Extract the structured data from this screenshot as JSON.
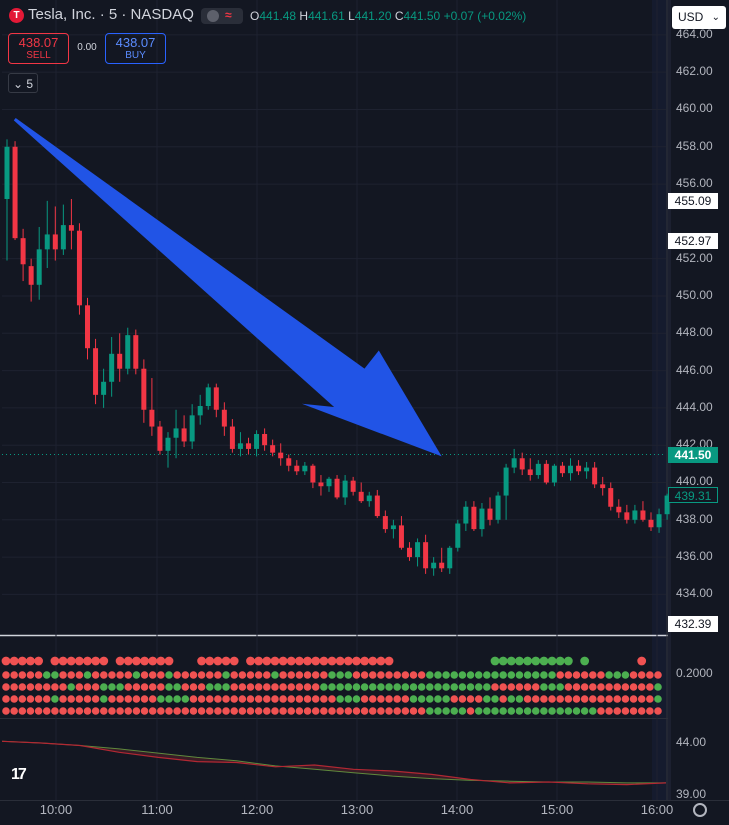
{
  "header": {
    "symbol_title": "Tesla, Inc. · 5 · NASDAQ",
    "logo_letter": "T",
    "ohlc": {
      "o_label": "O",
      "o": "441.48",
      "h_label": "H",
      "h": "441.61",
      "l_label": "L",
      "l": "441.20",
      "c_label": "C",
      "c": "441.50",
      "change": "+0.07 (+0.02%)"
    }
  },
  "trade": {
    "sell_price": "438.07",
    "sell_label": "SELL",
    "spread": "0.00",
    "buy_price": "438.07",
    "buy_label": "BUY"
  },
  "collapse_label": "5",
  "currency": "USD",
  "price_axis": {
    "ticks": [
      "464.00",
      "462.00",
      "460.00",
      "458.00",
      "456.00",
      "452.00",
      "450.00",
      "448.00",
      "446.00",
      "444.00",
      "442.00",
      "440.00",
      "438.00",
      "436.00",
      "434.00"
    ],
    "labels": [
      {
        "text": "455.09",
        "value": 455.09,
        "style": "white"
      },
      {
        "text": "452.97",
        "value": 452.97,
        "style": "white"
      },
      {
        "text": "441.50",
        "value": 441.5,
        "style": "green"
      },
      {
        "text": "439.31",
        "value": 439.31,
        "style": "outline"
      },
      {
        "text": "432.39",
        "value": 432.39,
        "style": "white"
      }
    ]
  },
  "indicator1": {
    "tick": "0.2000"
  },
  "indicator2": {
    "tick1": "44.00",
    "tick2": "39.00"
  },
  "time_axis": [
    "10:00",
    "11:00",
    "12:00",
    "13:00",
    "14:00",
    "15:00",
    "16:00"
  ],
  "colors": {
    "up": "#089981",
    "down": "#f23645",
    "arrow": "#2154e6",
    "bg": "#131722"
  },
  "chart_data": {
    "type": "candlestick",
    "title": "",
    "interval": "5",
    "ylim": [
      433.5,
      464.5
    ],
    "arrow": {
      "from": {
        "candle": 1,
        "price": 459.5
      },
      "to": {
        "candle": 54,
        "price": 441.4
      }
    },
    "last_price": 441.5,
    "candles": [
      {
        "o": 455.2,
        "h": 458.4,
        "l": 451.9,
        "c": 458.0
      },
      {
        "o": 458.0,
        "h": 458.3,
        "l": 453.0,
        "c": 453.1
      },
      {
        "o": 453.1,
        "h": 453.6,
        "l": 450.8,
        "c": 451.7
      },
      {
        "o": 451.6,
        "h": 452.0,
        "l": 449.7,
        "c": 450.6
      },
      {
        "o": 450.6,
        "h": 453.7,
        "l": 449.8,
        "c": 452.5
      },
      {
        "o": 452.5,
        "h": 455.1,
        "l": 451.5,
        "c": 453.3
      },
      {
        "o": 453.3,
        "h": 454.8,
        "l": 451.9,
        "c": 452.5
      },
      {
        "o": 452.5,
        "h": 454.9,
        "l": 452.2,
        "c": 453.8
      },
      {
        "o": 453.8,
        "h": 455.2,
        "l": 452.5,
        "c": 453.5
      },
      {
        "o": 453.5,
        "h": 453.9,
        "l": 449.0,
        "c": 449.5
      },
      {
        "o": 449.5,
        "h": 449.9,
        "l": 446.6,
        "c": 447.2
      },
      {
        "o": 447.2,
        "h": 447.7,
        "l": 444.2,
        "c": 444.7
      },
      {
        "o": 444.7,
        "h": 446.1,
        "l": 444.0,
        "c": 445.4
      },
      {
        "o": 445.4,
        "h": 447.8,
        "l": 444.6,
        "c": 446.9
      },
      {
        "o": 446.9,
        "h": 448.0,
        "l": 445.4,
        "c": 446.1
      },
      {
        "o": 446.1,
        "h": 448.3,
        "l": 445.8,
        "c": 447.9
      },
      {
        "o": 447.9,
        "h": 448.2,
        "l": 445.8,
        "c": 446.1
      },
      {
        "o": 446.1,
        "h": 446.6,
        "l": 443.2,
        "c": 443.9
      },
      {
        "o": 443.9,
        "h": 445.6,
        "l": 442.5,
        "c": 443.0
      },
      {
        "o": 443.0,
        "h": 443.3,
        "l": 441.5,
        "c": 441.7
      },
      {
        "o": 441.7,
        "h": 442.7,
        "l": 440.8,
        "c": 442.4
      },
      {
        "o": 442.4,
        "h": 443.9,
        "l": 441.3,
        "c": 442.9
      },
      {
        "o": 442.9,
        "h": 443.6,
        "l": 441.9,
        "c": 442.2
      },
      {
        "o": 442.2,
        "h": 444.2,
        "l": 441.8,
        "c": 443.6
      },
      {
        "o": 443.6,
        "h": 444.7,
        "l": 443.1,
        "c": 444.1
      },
      {
        "o": 444.1,
        "h": 445.3,
        "l": 443.9,
        "c": 445.1
      },
      {
        "o": 445.1,
        "h": 445.3,
        "l": 443.5,
        "c": 443.9
      },
      {
        "o": 443.9,
        "h": 444.3,
        "l": 442.5,
        "c": 443.0
      },
      {
        "o": 443.0,
        "h": 443.4,
        "l": 441.6,
        "c": 441.8
      },
      {
        "o": 441.8,
        "h": 442.7,
        "l": 441.4,
        "c": 442.1
      },
      {
        "o": 442.1,
        "h": 442.4,
        "l": 441.5,
        "c": 441.8
      },
      {
        "o": 441.8,
        "h": 442.8,
        "l": 441.4,
        "c": 442.6
      },
      {
        "o": 442.6,
        "h": 442.9,
        "l": 441.7,
        "c": 442.0
      },
      {
        "o": 442.0,
        "h": 442.3,
        "l": 441.4,
        "c": 441.6
      },
      {
        "o": 441.6,
        "h": 442.1,
        "l": 440.9,
        "c": 441.3
      },
      {
        "o": 441.3,
        "h": 441.5,
        "l": 440.6,
        "c": 440.9
      },
      {
        "o": 440.9,
        "h": 441.2,
        "l": 440.4,
        "c": 440.6
      },
      {
        "o": 440.6,
        "h": 441.1,
        "l": 440.4,
        "c": 440.9
      },
      {
        "o": 440.9,
        "h": 441.0,
        "l": 439.7,
        "c": 440.0
      },
      {
        "o": 440.0,
        "h": 440.4,
        "l": 439.3,
        "c": 439.8
      },
      {
        "o": 439.8,
        "h": 440.3,
        "l": 439.5,
        "c": 440.2
      },
      {
        "o": 440.2,
        "h": 440.4,
        "l": 439.1,
        "c": 439.2
      },
      {
        "o": 439.2,
        "h": 440.4,
        "l": 438.8,
        "c": 440.1
      },
      {
        "o": 440.1,
        "h": 440.3,
        "l": 439.3,
        "c": 439.5
      },
      {
        "o": 439.5,
        "h": 440.0,
        "l": 438.9,
        "c": 439.0
      },
      {
        "o": 439.0,
        "h": 439.5,
        "l": 438.7,
        "c": 439.3
      },
      {
        "o": 439.3,
        "h": 439.6,
        "l": 438.1,
        "c": 438.2
      },
      {
        "o": 438.2,
        "h": 438.5,
        "l": 437.3,
        "c": 437.5
      },
      {
        "o": 437.5,
        "h": 438.0,
        "l": 437.0,
        "c": 437.7
      },
      {
        "o": 437.7,
        "h": 438.2,
        "l": 436.4,
        "c": 436.5
      },
      {
        "o": 436.5,
        "h": 436.8,
        "l": 435.8,
        "c": 436.0
      },
      {
        "o": 436.0,
        "h": 437.0,
        "l": 435.5,
        "c": 436.8
      },
      {
        "o": 436.8,
        "h": 437.2,
        "l": 435.1,
        "c": 435.4
      },
      {
        "o": 435.4,
        "h": 436.0,
        "l": 435.0,
        "c": 435.7
      },
      {
        "o": 435.7,
        "h": 436.5,
        "l": 435.2,
        "c": 435.4
      },
      {
        "o": 435.4,
        "h": 436.6,
        "l": 435.1,
        "c": 436.5
      },
      {
        "o": 436.5,
        "h": 438.0,
        "l": 436.3,
        "c": 437.8
      },
      {
        "o": 437.8,
        "h": 439.0,
        "l": 437.4,
        "c": 438.7
      },
      {
        "o": 438.7,
        "h": 439.0,
        "l": 437.4,
        "c": 437.5
      },
      {
        "o": 437.5,
        "h": 438.9,
        "l": 437.1,
        "c": 438.6
      },
      {
        "o": 438.6,
        "h": 439.2,
        "l": 437.7,
        "c": 438.0
      },
      {
        "o": 438.0,
        "h": 439.5,
        "l": 437.8,
        "c": 439.3
      },
      {
        "o": 439.3,
        "h": 441.0,
        "l": 438.0,
        "c": 440.8
      },
      {
        "o": 440.8,
        "h": 441.8,
        "l": 440.5,
        "c": 441.3
      },
      {
        "o": 441.3,
        "h": 441.6,
        "l": 440.4,
        "c": 440.7
      },
      {
        "o": 440.7,
        "h": 441.3,
        "l": 440.1,
        "c": 440.4
      },
      {
        "o": 440.4,
        "h": 441.2,
        "l": 440.2,
        "c": 441.0
      },
      {
        "o": 441.0,
        "h": 441.2,
        "l": 439.9,
        "c": 440.0
      },
      {
        "o": 440.0,
        "h": 441.0,
        "l": 439.8,
        "c": 440.9
      },
      {
        "o": 440.9,
        "h": 441.1,
        "l": 440.3,
        "c": 440.5
      },
      {
        "o": 440.5,
        "h": 441.3,
        "l": 440.1,
        "c": 440.9
      },
      {
        "o": 440.9,
        "h": 441.2,
        "l": 440.4,
        "c": 440.6
      },
      {
        "o": 440.6,
        "h": 441.1,
        "l": 440.2,
        "c": 440.8
      },
      {
        "o": 440.8,
        "h": 441.1,
        "l": 439.7,
        "c": 439.9
      },
      {
        "o": 439.9,
        "h": 440.3,
        "l": 439.3,
        "c": 439.7
      },
      {
        "o": 439.7,
        "h": 440.0,
        "l": 438.5,
        "c": 438.7
      },
      {
        "o": 438.7,
        "h": 439.1,
        "l": 438.1,
        "c": 438.4
      },
      {
        "o": 438.4,
        "h": 438.8,
        "l": 437.8,
        "c": 438.0
      },
      {
        "o": 438.0,
        "h": 438.8,
        "l": 437.8,
        "c": 438.5
      },
      {
        "o": 438.5,
        "h": 439.0,
        "l": 437.9,
        "c": 438.0
      },
      {
        "o": 438.0,
        "h": 438.4,
        "l": 437.4,
        "c": 437.6
      },
      {
        "o": 437.6,
        "h": 438.6,
        "l": 437.3,
        "c": 438.3
      },
      {
        "o": 438.3,
        "h": 439.4,
        "l": 438.0,
        "c": 439.3
      }
    ],
    "signal_top": "rrrrr_rrrrrrr_rrrrrrr___rrrrr_rrrrrrrrrrrrrrrrrr____________gggggggggg_g______r_",
    "signal_rows": [
      "rrrrrggrrrgrrrrrgrrrgrrrrrrgrrrrrgrrrrrrgggrrrrrrrrrggggggggggggggggrrrrrrgggrrrr",
      "rrrrrrrrgrrrgggrrrrrggrrrgggrrrrrrrrrrrgggggggggggggggggggggrrrrrrgggrrrrrrrrrrrg",
      "rrrrrrgrrrrrgrrrrrrggggrrrrrrrrrrrrrrrrrrgggrrrrrrgggggrrrrggrggrrrrrrrrrrrrrrrrg",
      "rrrrrrrrrrrrrrrrrrrrrrrrrrrrrrrrrrrrrrrrrrrrrrrrrrrrgggggrgggggggggggggggrrrrrrrr"
    ],
    "oscillator": {
      "ylim": [
        39.0,
        45.0
      ],
      "red": [
        44.5,
        44.3,
        44.0,
        43.2,
        42.6,
        42.1,
        42.0,
        41.5,
        41.7,
        41.2,
        41.0,
        40.6,
        40.0,
        39.6,
        39.7,
        39.5,
        39.4,
        39.6
      ],
      "green": [
        44.5,
        44.3,
        44.0,
        43.6,
        43.1,
        42.6,
        42.2,
        41.6,
        41.2,
        40.8,
        40.4,
        40.1,
        39.9,
        39.8,
        39.7,
        39.7,
        39.6,
        39.6
      ]
    }
  }
}
